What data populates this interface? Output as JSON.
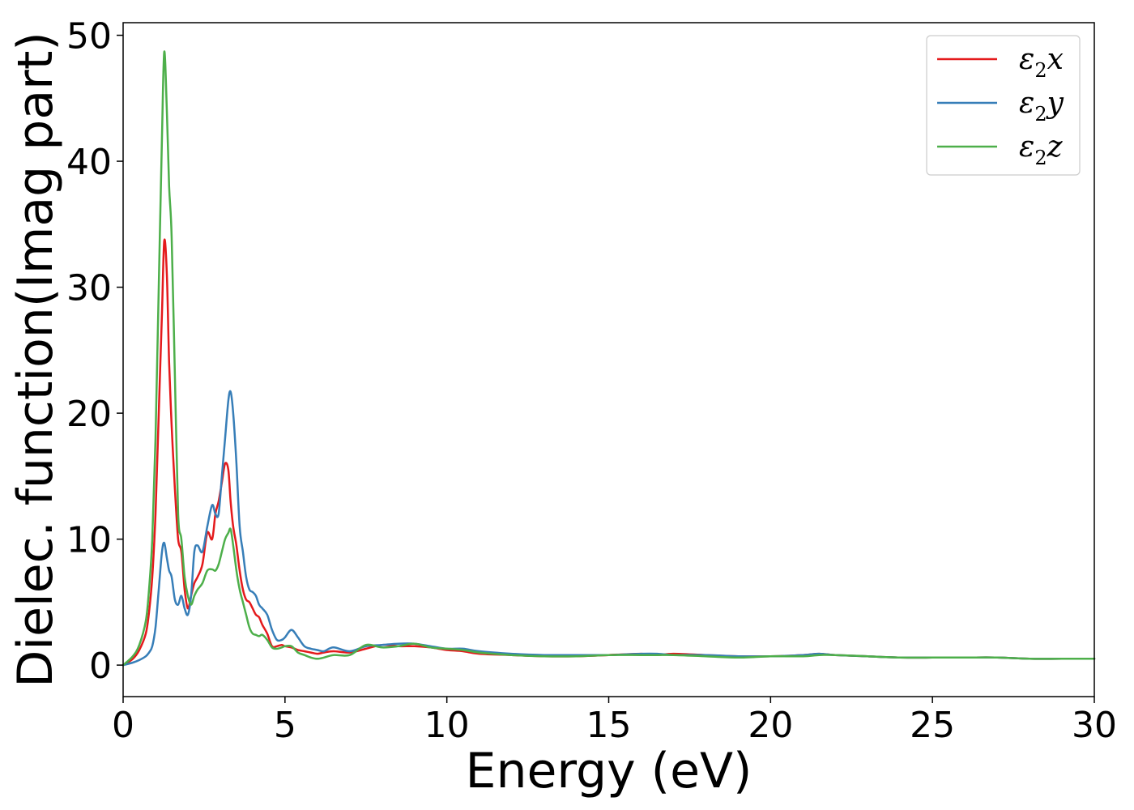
{
  "chart_data": {
    "type": "line",
    "title": "",
    "xlabel": "Energy (eV)",
    "ylabel": "Dielec. function(Imag part)",
    "xlim": [
      0,
      30
    ],
    "ylim": [
      -2.5,
      51
    ],
    "xticks": [
      0,
      5,
      10,
      15,
      20,
      25,
      30
    ],
    "yticks": [
      0,
      10,
      20,
      30,
      40,
      50
    ],
    "grid": false,
    "legend_position": "top-right",
    "series": [
      {
        "name": "ε₂x",
        "legend_base": "ε",
        "legend_sub": "2",
        "legend_suffix": "x",
        "color": "#e41a1c",
        "x": [
          0,
          0.3,
          0.5,
          0.7,
          0.8,
          0.9,
          1.0,
          1.1,
          1.2,
          1.27,
          1.35,
          1.42,
          1.5,
          1.6,
          1.7,
          1.8,
          1.9,
          2.0,
          2.1,
          2.2,
          2.3,
          2.45,
          2.6,
          2.75,
          2.85,
          2.95,
          3.05,
          3.15,
          3.25,
          3.32,
          3.4,
          3.5,
          3.6,
          3.7,
          3.8,
          3.9,
          4.0,
          4.1,
          4.2,
          4.3,
          4.45,
          4.6,
          4.75,
          4.9,
          5.0,
          5.2,
          5.4,
          5.6,
          5.8,
          6.0,
          6.2,
          6.5,
          7.0,
          7.5,
          8.0,
          8.5,
          9.0,
          9.5,
          10.0,
          10.5,
          11.0,
          12.0,
          13.0,
          14.0,
          15.0,
          16.0,
          16.5,
          17.0,
          18.0,
          19.0,
          20.0,
          21.0,
          21.5,
          22.0,
          23.0,
          24.0,
          25.0,
          26.0,
          27.0,
          28.0,
          29.0,
          30.0
        ],
        "y": [
          0,
          0.5,
          1.2,
          2.5,
          4.2,
          7,
          12,
          20,
          28,
          33.7,
          31,
          24,
          19,
          14,
          10,
          9,
          6,
          4.5,
          5.5,
          6.5,
          7,
          8,
          10.5,
          10,
          12,
          13,
          14.5,
          16,
          15.5,
          13,
          11,
          9.5,
          7.5,
          6,
          5.2,
          5,
          4.5,
          4,
          3.8,
          3.2,
          2.5,
          1.5,
          1.5,
          1.6,
          1.5,
          1.4,
          1.2,
          1.1,
          1,
          0.9,
          1,
          1.1,
          1,
          1.3,
          1.6,
          1.5,
          1.5,
          1.4,
          1.2,
          1.1,
          0.9,
          0.8,
          0.7,
          0.7,
          0.8,
          0.9,
          0.8,
          0.9,
          0.8,
          0.7,
          0.7,
          0.8,
          0.9,
          0.8,
          0.7,
          0.6,
          0.6,
          0.6,
          0.6,
          0.5,
          0.5,
          0.5
        ]
      },
      {
        "name": "ε₂y",
        "legend_base": "ε",
        "legend_sub": "2",
        "legend_suffix": "y",
        "color": "#377eb8",
        "x": [
          0,
          0.3,
          0.5,
          0.7,
          0.8,
          0.9,
          1.0,
          1.1,
          1.2,
          1.27,
          1.35,
          1.42,
          1.5,
          1.6,
          1.7,
          1.8,
          1.9,
          2.0,
          2.1,
          2.2,
          2.3,
          2.45,
          2.6,
          2.75,
          2.85,
          2.95,
          3.05,
          3.15,
          3.25,
          3.32,
          3.4,
          3.5,
          3.6,
          3.7,
          3.8,
          3.9,
          4.0,
          4.1,
          4.2,
          4.3,
          4.45,
          4.6,
          4.75,
          4.9,
          5.0,
          5.2,
          5.4,
          5.6,
          5.8,
          6.0,
          6.2,
          6.5,
          7.0,
          7.5,
          8.0,
          8.5,
          9.0,
          9.5,
          10.0,
          10.5,
          11.0,
          12.0,
          13.0,
          14.0,
          15.0,
          16.0,
          16.5,
          17.0,
          18.0,
          19.0,
          20.0,
          21.0,
          21.5,
          22.0,
          23.0,
          24.0,
          25.0,
          26.0,
          27.0,
          28.0,
          29.0,
          30.0
        ],
        "y": [
          0,
          0.2,
          0.4,
          0.7,
          1,
          1.5,
          3,
          6,
          9,
          9.7,
          8.5,
          7.5,
          7,
          5.2,
          4.8,
          5.5,
          4.5,
          4,
          5.5,
          9,
          9.5,
          9,
          11,
          12.7,
          12,
          12,
          15,
          18,
          21,
          21.7,
          20,
          16,
          11,
          9,
          7,
          6,
          5.8,
          5.5,
          4.8,
          4.5,
          4,
          2.8,
          2,
          2,
          2.2,
          2.8,
          2.2,
          1.5,
          1.3,
          1.2,
          1.1,
          1.4,
          1.1,
          1.5,
          1.6,
          1.7,
          1.7,
          1.5,
          1.3,
          1.3,
          1.1,
          0.9,
          0.8,
          0.8,
          0.8,
          0.9,
          0.9,
          0.8,
          0.8,
          0.7,
          0.7,
          0.8,
          0.9,
          0.8,
          0.7,
          0.6,
          0.6,
          0.6,
          0.6,
          0.5,
          0.5,
          0.5
        ]
      },
      {
        "name": "ε₂z",
        "legend_base": "ε",
        "legend_sub": "2",
        "legend_suffix": "z",
        "color": "#4daf4a",
        "x": [
          0,
          0.3,
          0.5,
          0.7,
          0.8,
          0.9,
          1.0,
          1.1,
          1.2,
          1.27,
          1.35,
          1.42,
          1.5,
          1.6,
          1.7,
          1.8,
          1.9,
          2.0,
          2.1,
          2.2,
          2.3,
          2.45,
          2.6,
          2.75,
          2.85,
          2.95,
          3.05,
          3.15,
          3.25,
          3.32,
          3.4,
          3.5,
          3.6,
          3.7,
          3.8,
          3.9,
          4.0,
          4.1,
          4.2,
          4.3,
          4.45,
          4.6,
          4.75,
          4.9,
          5.0,
          5.2,
          5.4,
          5.6,
          5.8,
          6.0,
          6.2,
          6.5,
          7.0,
          7.5,
          8.0,
          8.5,
          9.0,
          9.5,
          10.0,
          10.5,
          11.0,
          12.0,
          13.0,
          14.0,
          15.0,
          16.0,
          16.5,
          17.0,
          18.0,
          19.0,
          20.0,
          21.0,
          21.5,
          22.0,
          23.0,
          24.0,
          25.0,
          26.0,
          27.0,
          28.0,
          29.0,
          30.0
        ],
        "y": [
          0,
          0.7,
          1.6,
          3.5,
          6,
          10,
          18,
          30,
          42,
          48.7,
          44,
          38,
          34,
          23,
          12,
          10,
          7,
          5.5,
          4.8,
          5.5,
          6,
          6.5,
          7.5,
          7.6,
          7.5,
          8,
          9,
          10,
          10.5,
          10.8,
          9.5,
          7.5,
          6,
          5,
          4,
          3,
          2.5,
          2.4,
          2.3,
          2.4,
          2,
          1.4,
          1.3,
          1.4,
          1.5,
          1.5,
          1,
          0.8,
          0.6,
          0.5,
          0.6,
          0.8,
          0.8,
          1.6,
          1.4,
          1.5,
          1.7,
          1.4,
          1.3,
          1.2,
          1,
          0.8,
          0.7,
          0.7,
          0.8,
          0.8,
          0.8,
          0.8,
          0.7,
          0.6,
          0.7,
          0.7,
          0.8,
          0.8,
          0.7,
          0.6,
          0.6,
          0.6,
          0.6,
          0.5,
          0.5,
          0.5
        ]
      }
    ]
  }
}
